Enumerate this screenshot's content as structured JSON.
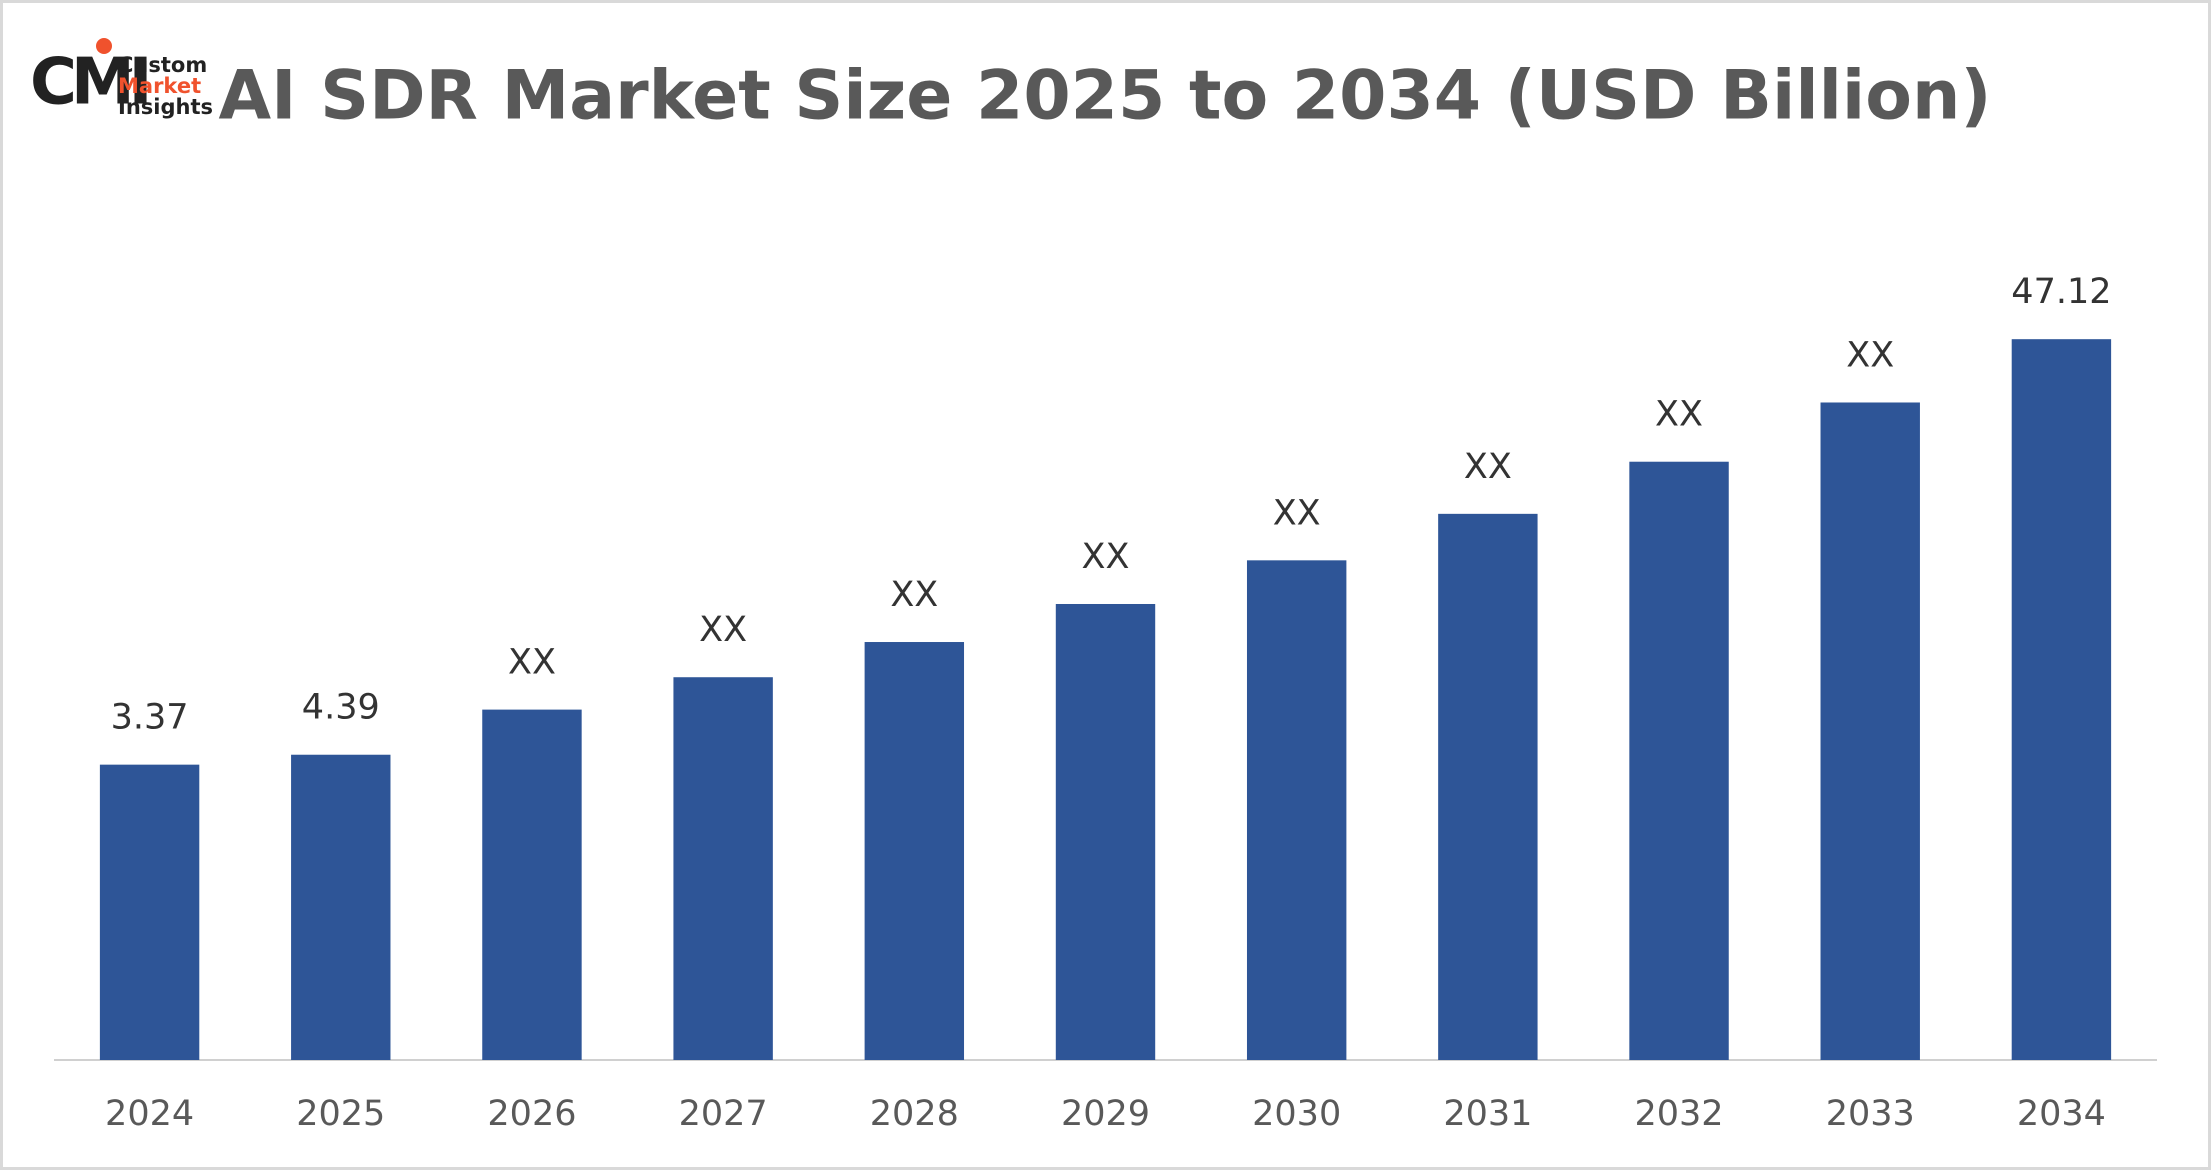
{
  "logo": {
    "mark": "CMI",
    "lines": [
      "Custom",
      "Market",
      "Insights"
    ]
  },
  "chart_data": {
    "type": "bar",
    "title": "AI SDR Market Size 2025 to 2034 (USD Billion)",
    "categories": [
      "2024",
      "2025",
      "2026",
      "2027",
      "2028",
      "2029",
      "2030",
      "2031",
      "2032",
      "2033",
      "2034"
    ],
    "values": [
      3.37,
      4.39,
      9.03,
      12.36,
      15.98,
      19.89,
      24.38,
      29.16,
      34.52,
      40.61,
      47.12
    ],
    "value_labels": [
      "3.37",
      "4.39",
      "XX",
      "XX",
      "XX",
      "XX",
      "XX",
      "XX",
      "XX",
      "XX",
      "47.12"
    ],
    "color": "#2e5597",
    "ylim": [
      -27,
      53
    ],
    "grid": false
  }
}
